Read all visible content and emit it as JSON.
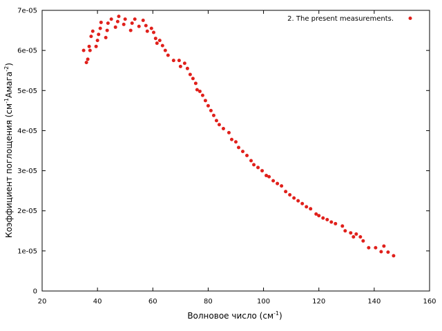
{
  "chart_data": {
    "type": "scatter",
    "title": "",
    "xlabel": "Волновое число (см",
    "xlabel_sup": "-1",
    "xlabel_end": ")",
    "ylabel_parts": [
      "Коэффициент поглощения (см",
      "-1",
      "Амага",
      "-2",
      ")"
    ],
    "xlim": [
      20,
      160
    ],
    "ylim": [
      0,
      7e-05
    ],
    "xticks": [
      20,
      40,
      60,
      80,
      100,
      120,
      140,
      160
    ],
    "yticks": [
      0,
      1e-05,
      2e-05,
      3e-05,
      4e-05,
      5e-05,
      6e-05,
      7e-05
    ],
    "xtick_labels": [
      "20",
      "40",
      "60",
      "80",
      "100",
      "120",
      "140",
      "160"
    ],
    "ytick_labels": [
      "0",
      "1e-05",
      "2e-05",
      "3e-05",
      "4e-05",
      "5e-05",
      "6e-05",
      "7e-05"
    ],
    "grid": false,
    "legend_position": "top-right",
    "series": [
      {
        "name": "2.  The present measurements.",
        "color": "#e0201b",
        "points": [
          [
            35.0,
            6e-05
          ],
          [
            36.0,
            5.7e-05
          ],
          [
            36.5,
            5.78e-05
          ],
          [
            37.0,
            6.1e-05
          ],
          [
            37.3,
            6e-05
          ],
          [
            37.7,
            6.35e-05
          ],
          [
            38.3,
            6.48e-05
          ],
          [
            39.5,
            6.1e-05
          ],
          [
            40.0,
            6.25e-05
          ],
          [
            40.4,
            6.4e-05
          ],
          [
            41.0,
            6.55e-05
          ],
          [
            41.3,
            6.7e-05
          ],
          [
            43.0,
            6.32e-05
          ],
          [
            43.5,
            6.5e-05
          ],
          [
            43.8,
            6.68e-05
          ],
          [
            45.0,
            6.78e-05
          ],
          [
            46.5,
            6.58e-05
          ],
          [
            47.3,
            6.72e-05
          ],
          [
            47.7,
            6.85e-05
          ],
          [
            49.5,
            6.65e-05
          ],
          [
            50.0,
            6.78e-05
          ],
          [
            52.0,
            6.5e-05
          ],
          [
            52.5,
            6.68e-05
          ],
          [
            53.5,
            6.78e-05
          ],
          [
            55.0,
            6.6e-05
          ],
          [
            56.5,
            6.75e-05
          ],
          [
            57.5,
            6.62e-05
          ],
          [
            58.0,
            6.48e-05
          ],
          [
            59.5,
            6.55e-05
          ],
          [
            60.3,
            6.45e-05
          ],
          [
            61.0,
            6.3e-05
          ],
          [
            61.5,
            6.18e-05
          ],
          [
            62.5,
            6.25e-05
          ],
          [
            63.5,
            6.12e-05
          ],
          [
            64.5,
            6e-05
          ],
          [
            65.5,
            5.88e-05
          ],
          [
            67.5,
            5.75e-05
          ],
          [
            69.5,
            5.75e-05
          ],
          [
            70.0,
            5.6e-05
          ],
          [
            71.5,
            5.68e-05
          ],
          [
            72.5,
            5.55e-05
          ],
          [
            73.5,
            5.4e-05
          ],
          [
            74.5,
            5.3e-05
          ],
          [
            75.5,
            5.18e-05
          ],
          [
            76.0,
            5.02e-05
          ],
          [
            77.0,
            4.98e-05
          ],
          [
            78.0,
            4.88e-05
          ],
          [
            79.0,
            4.75e-05
          ],
          [
            80.0,
            4.62e-05
          ],
          [
            81.0,
            4.5e-05
          ],
          [
            82.0,
            4.38e-05
          ],
          [
            83.0,
            4.25e-05
          ],
          [
            84.0,
            4.15e-05
          ],
          [
            85.5,
            4.05e-05
          ],
          [
            87.5,
            3.95e-05
          ],
          [
            88.5,
            3.78e-05
          ],
          [
            90.0,
            3.72e-05
          ],
          [
            91.0,
            3.58e-05
          ],
          [
            92.5,
            3.48e-05
          ],
          [
            94.0,
            3.38e-05
          ],
          [
            95.5,
            3.25e-05
          ],
          [
            96.5,
            3.15e-05
          ],
          [
            98.0,
            3.08e-05
          ],
          [
            99.5,
            3e-05
          ],
          [
            101.0,
            2.88e-05
          ],
          [
            102.0,
            2.85e-05
          ],
          [
            103.5,
            2.75e-05
          ],
          [
            105.0,
            2.68e-05
          ],
          [
            106.5,
            2.62e-05
          ],
          [
            108.0,
            2.48e-05
          ],
          [
            109.5,
            2.4e-05
          ],
          [
            111.0,
            2.32e-05
          ],
          [
            112.5,
            2.25e-05
          ],
          [
            114.0,
            2.18e-05
          ],
          [
            115.5,
            2.1e-05
          ],
          [
            117.0,
            2.05e-05
          ],
          [
            119.0,
            1.92e-05
          ],
          [
            120.0,
            1.88e-05
          ],
          [
            121.5,
            1.82e-05
          ],
          [
            123.0,
            1.78e-05
          ],
          [
            124.5,
            1.72e-05
          ],
          [
            126.0,
            1.68e-05
          ],
          [
            128.5,
            1.62e-05
          ],
          [
            129.5,
            1.5e-05
          ],
          [
            131.5,
            1.45e-05
          ],
          [
            132.5,
            1.35e-05
          ],
          [
            133.5,
            1.42e-05
          ],
          [
            135.0,
            1.35e-05
          ],
          [
            136.0,
            1.25e-05
          ],
          [
            138.0,
            1.08e-05
          ],
          [
            140.5,
            1.08e-05
          ],
          [
            142.5,
            9.8e-06
          ],
          [
            143.5,
            1.12e-05
          ],
          [
            145.0,
            9.7e-06
          ],
          [
            147.0,
            8.8e-06
          ]
        ]
      }
    ]
  }
}
